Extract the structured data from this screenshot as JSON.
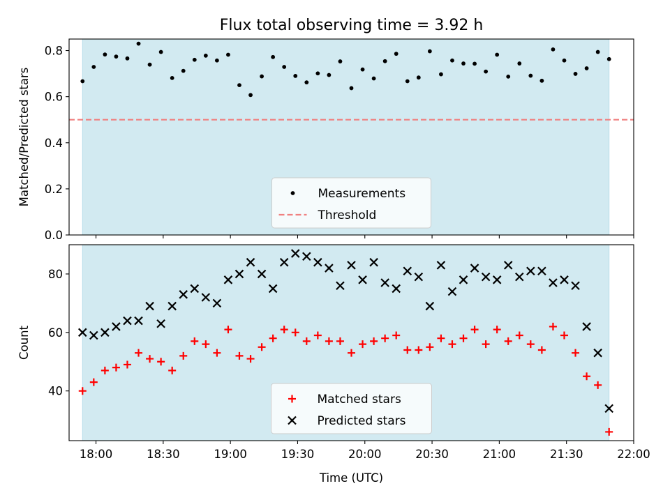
{
  "title": "Flux total observing time = 3.92 h",
  "colors": {
    "band": "#add8e6",
    "threshold": "#f08080",
    "measurement": "#000000",
    "matched": "#ff0000",
    "predicted": "#000000"
  },
  "chart_data": [
    {
      "type": "scatter",
      "ylabel": "Matched/Predicted stars",
      "ylim": [
        0,
        0.85
      ],
      "yticks": [
        0.0,
        0.2,
        0.4,
        0.6,
        0.8
      ],
      "ytick_labels": [
        "0.0",
        "0.2",
        "0.4",
        "0.6",
        "0.8"
      ],
      "x_range": [
        "17:48",
        "22:00"
      ],
      "observing_window": [
        "17:54",
        "21:49"
      ],
      "threshold": 0.5,
      "legend_position": "bottom-center",
      "legend": [
        "Measurements",
        "Threshold"
      ],
      "series": [
        {
          "name": "Measurements",
          "marker": "dot",
          "x": [
            "17:54",
            "17:59",
            "18:04",
            "18:09",
            "18:14",
            "18:19",
            "18:24",
            "18:29",
            "18:34",
            "18:39",
            "18:44",
            "18:49",
            "18:54",
            "18:59",
            "19:04",
            "19:09",
            "19:14",
            "19:19",
            "19:24",
            "19:29",
            "19:34",
            "19:39",
            "19:44",
            "19:49",
            "19:54",
            "19:59",
            "20:04",
            "20:09",
            "20:14",
            "20:19",
            "20:24",
            "20:29",
            "20:34",
            "20:39",
            "20:44",
            "20:49",
            "20:54",
            "20:59",
            "21:04",
            "21:09",
            "21:14",
            "21:19",
            "21:24",
            "21:29",
            "21:34",
            "21:39",
            "21:44",
            "21:49"
          ],
          "y": [
            0.667,
            0.729,
            0.783,
            0.774,
            0.766,
            0.83,
            0.739,
            0.794,
            0.681,
            0.712,
            0.76,
            0.778,
            0.757,
            0.782,
            0.65,
            0.607,
            0.688,
            0.772,
            0.729,
            0.69,
            0.662,
            0.701,
            0.694,
            0.753,
            0.637,
            0.718,
            0.679,
            0.754,
            0.786,
            0.667,
            0.683,
            0.797,
            0.697,
            0.757,
            0.744,
            0.743,
            0.709,
            0.782,
            0.687,
            0.744,
            0.691,
            0.669,
            0.805,
            0.757,
            0.699,
            0.723,
            0.794,
            0.763
          ]
        }
      ]
    },
    {
      "type": "scatter",
      "ylabel": "Count",
      "xlabel": "Time (UTC)",
      "ylim": [
        23,
        90
      ],
      "yticks": [
        40,
        60,
        80
      ],
      "ytick_labels": [
        "40",
        "60",
        "80"
      ],
      "x_range": [
        "17:48",
        "22:00"
      ],
      "xticks": [
        "18:00",
        "18:30",
        "19:00",
        "19:30",
        "20:00",
        "20:30",
        "21:00",
        "21:30",
        "22:00"
      ],
      "xtick_labels": [
        "18:00",
        "18:30",
        "19:00",
        "19:30",
        "20:00",
        "20:30",
        "21:00",
        "21:30",
        "22:00"
      ],
      "observing_window": [
        "17:54",
        "21:49"
      ],
      "legend_position": "bottom-center",
      "legend": [
        "Matched stars",
        "Predicted stars"
      ],
      "series": [
        {
          "name": "Matched stars",
          "marker": "plus",
          "x": [
            "17:54",
            "17:59",
            "18:04",
            "18:09",
            "18:14",
            "18:19",
            "18:24",
            "18:29",
            "18:34",
            "18:39",
            "18:44",
            "18:49",
            "18:54",
            "18:59",
            "19:04",
            "19:09",
            "19:14",
            "19:19",
            "19:24",
            "19:29",
            "19:34",
            "19:39",
            "19:44",
            "19:49",
            "19:54",
            "19:59",
            "20:04",
            "20:09",
            "20:14",
            "20:19",
            "20:24",
            "20:29",
            "20:34",
            "20:39",
            "20:44",
            "20:49",
            "20:54",
            "20:59",
            "21:04",
            "21:09",
            "21:14",
            "21:19",
            "21:24",
            "21:29",
            "21:34",
            "21:39",
            "21:44",
            "21:49"
          ],
          "y": [
            40,
            43,
            47,
            48,
            49,
            53,
            51,
            50,
            47,
            52,
            57,
            56,
            53,
            61,
            52,
            51,
            55,
            58,
            61,
            60,
            57,
            59,
            57,
            57,
            53,
            56,
            57,
            58,
            59,
            54,
            54,
            55,
            58,
            56,
            58,
            61,
            56,
            61,
            57,
            59,
            56,
            54,
            62,
            59,
            53,
            45,
            42,
            26
          ]
        },
        {
          "name": "Predicted stars",
          "marker": "x",
          "x": [
            "17:54",
            "17:59",
            "18:04",
            "18:09",
            "18:14",
            "18:19",
            "18:24",
            "18:29",
            "18:34",
            "18:39",
            "18:44",
            "18:49",
            "18:54",
            "18:59",
            "19:04",
            "19:09",
            "19:14",
            "19:19",
            "19:24",
            "19:29",
            "19:34",
            "19:39",
            "19:44",
            "19:49",
            "19:54",
            "19:59",
            "20:04",
            "20:09",
            "20:14",
            "20:19",
            "20:24",
            "20:29",
            "20:34",
            "20:39",
            "20:44",
            "20:49",
            "20:54",
            "20:59",
            "21:04",
            "21:09",
            "21:14",
            "21:19",
            "21:24",
            "21:29",
            "21:34",
            "21:39",
            "21:44",
            "21:49"
          ],
          "y": [
            60,
            59,
            60,
            62,
            64,
            64,
            69,
            63,
            69,
            73,
            75,
            72,
            70,
            78,
            80,
            84,
            80,
            75,
            84,
            87,
            86,
            84,
            82,
            76,
            83,
            78,
            84,
            77,
            75,
            81,
            79,
            69,
            83,
            74,
            78,
            82,
            79,
            78,
            83,
            79,
            81,
            81,
            77,
            78,
            76,
            62,
            53,
            34
          ]
        }
      ]
    }
  ]
}
